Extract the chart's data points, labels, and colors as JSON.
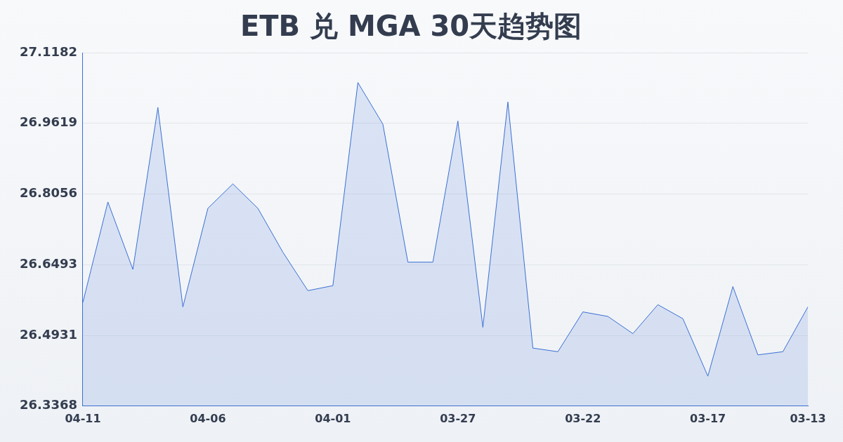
{
  "chart_data": {
    "type": "area",
    "title": "ETB 兑 MGA 30天趋势图",
    "categories": [
      "04-11",
      null,
      null,
      null,
      null,
      "04-06",
      null,
      null,
      null,
      null,
      "04-01",
      null,
      null,
      null,
      null,
      "03-27",
      null,
      null,
      null,
      null,
      "03-22",
      null,
      null,
      null,
      null,
      "03-17",
      null,
      null,
      null,
      "03-13"
    ],
    "series": [
      {
        "color": "#3b6fd4",
        "values": [
          26.566,
          26.788,
          26.639,
          26.997,
          26.556,
          26.774,
          26.828,
          26.774,
          26.677,
          26.592,
          26.603,
          27.052,
          26.96,
          26.655,
          26.655,
          26.967,
          26.511,
          27.009,
          26.465,
          26.457,
          26.545,
          26.535,
          26.497,
          26.561,
          26.53,
          26.403,
          26.601,
          26.45,
          26.457,
          26.556
        ]
      }
    ],
    "ylim": [
      26.3368,
      27.1182
    ],
    "yticks": [
      26.3368,
      26.4931,
      26.6493,
      26.8056,
      26.9619,
      27.1182
    ],
    "grid": "y",
    "legend": false,
    "marker": "none",
    "line_style": "solid"
  }
}
